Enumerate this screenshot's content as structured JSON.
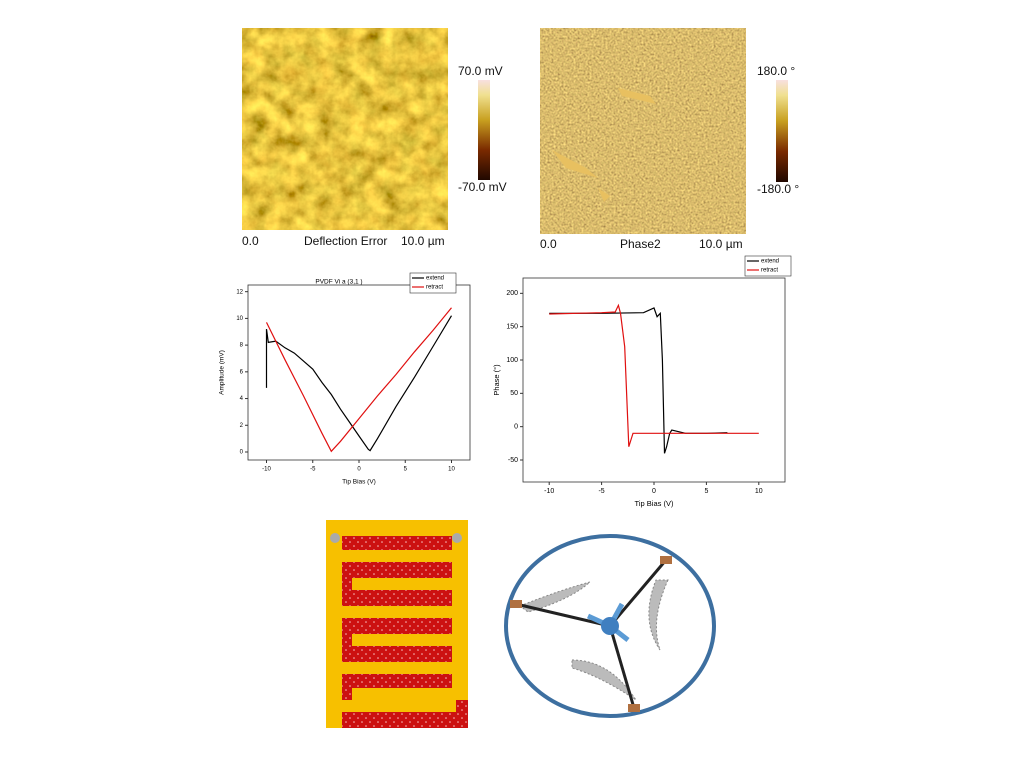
{
  "images": [
    {
      "scale_max": "70.0 mV",
      "scale_min": "-70.0 mV",
      "x_start": "0.0",
      "channel": "Deflection Error",
      "x_end": "10.0 µm"
    },
    {
      "scale_max": "180.0 °",
      "scale_min": "-180.0 °",
      "x_start": "0.0",
      "channel": "Phase2",
      "x_end": "10.0 µm"
    }
  ],
  "chart_data": [
    {
      "type": "line",
      "title": "PVDF Vi a (3,1 )",
      "x_label": "Tip Bias (V)",
      "y_label": "Amplitude (mV)",
      "xlim": [
        -12,
        12
      ],
      "ylim": [
        -0.6,
        12.5
      ],
      "xticks": [
        -10,
        -5,
        0,
        5,
        10
      ],
      "yticks": [
        0,
        2,
        4,
        6,
        8,
        10,
        12
      ],
      "legend": "top-right",
      "series": [
        {
          "name": "extend",
          "color": "#000000",
          "x": [
            -10,
            -10,
            -9.8,
            -9,
            -8,
            -7,
            -6,
            -5,
            -4,
            -3,
            -2,
            -1,
            0,
            1,
            1.2,
            2,
            4,
            6,
            8,
            10
          ],
          "values": [
            4.8,
            9.2,
            8.2,
            8.3,
            7.8,
            7.4,
            6.8,
            6.2,
            5.2,
            4.3,
            3.2,
            2.2,
            1.2,
            0.2,
            0.1,
            1.0,
            3.4,
            5.6,
            7.9,
            10.2
          ]
        },
        {
          "name": "retract",
          "color": "#e01010",
          "x": [
            -10,
            -8,
            -6,
            -4,
            -3,
            -2,
            0,
            2,
            4,
            6,
            8,
            10
          ],
          "values": [
            9.7,
            6.9,
            4.2,
            1.4,
            0.05,
            0.8,
            2.5,
            4.2,
            5.8,
            7.5,
            9.1,
            10.8
          ]
        }
      ]
    },
    {
      "type": "line",
      "x_label": "Tip Bias (V)",
      "y_label": "Phase (°)",
      "xlim": [
        -12.5,
        12.5
      ],
      "ylim": [
        -83,
        223
      ],
      "xticks": [
        -10,
        -5,
        0,
        5,
        10
      ],
      "yticks": [
        -50,
        0,
        50,
        100,
        150,
        200
      ],
      "legend": "top-right",
      "series": [
        {
          "name": "extend",
          "color": "#000000",
          "x": [
            -10,
            -5,
            -1,
            0,
            0.3,
            0.6,
            0.8,
            1.0,
            1.2,
            1.5,
            1.7,
            3,
            5,
            7
          ],
          "values": [
            170,
            170,
            171,
            178,
            165,
            170,
            100,
            -40,
            -30,
            -10,
            -5,
            -10,
            -10,
            -9
          ]
        },
        {
          "name": "retract",
          "color": "#e01010",
          "x": [
            -10,
            -5,
            -3.7,
            -3.4,
            -3.2,
            -2.8,
            -2.4,
            -2.2,
            -2,
            0,
            5,
            10
          ],
          "values": [
            169,
            171,
            172,
            182,
            170,
            120,
            -30,
            -20,
            -10,
            -10,
            -10,
            -10
          ]
        }
      ]
    }
  ]
}
